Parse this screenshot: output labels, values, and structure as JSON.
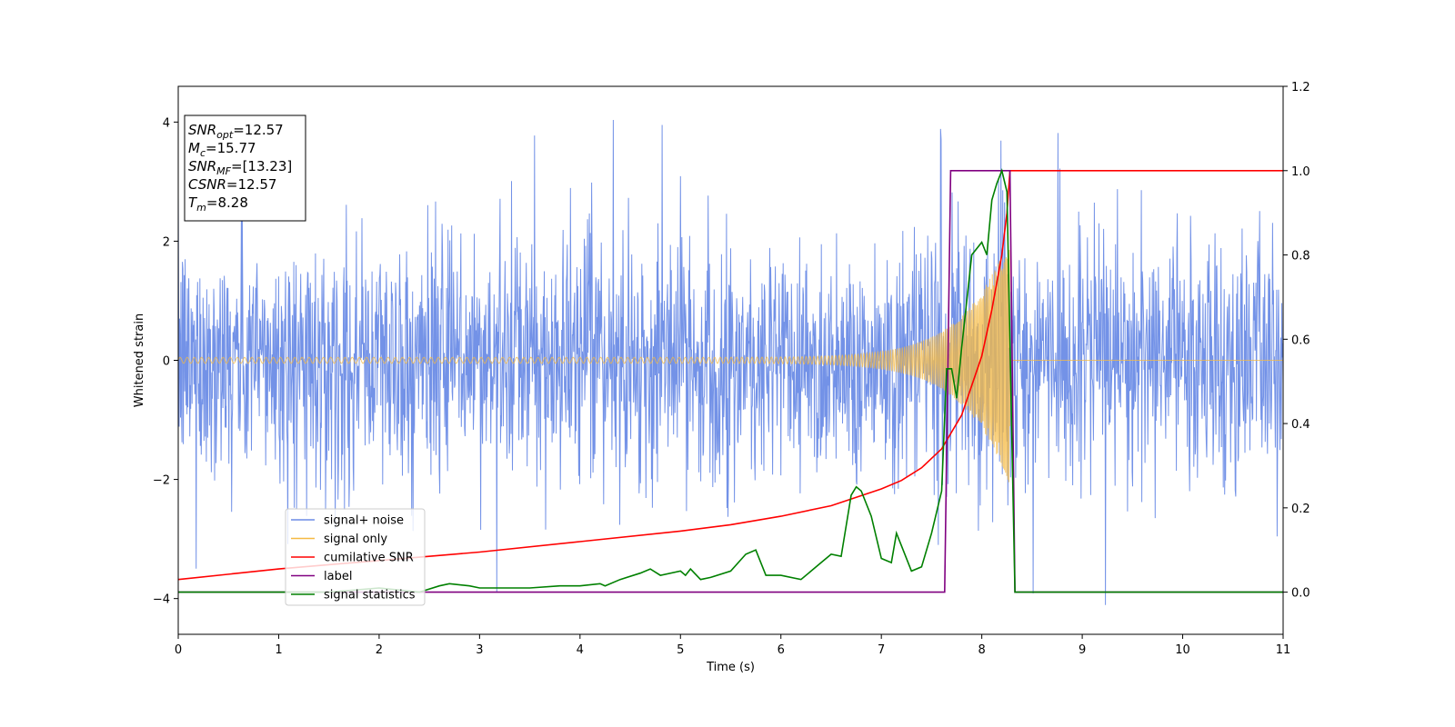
{
  "chart_data": {
    "type": "line",
    "xlabel": "Time (s)",
    "ylabel": "Whitened strain",
    "xlim": [
      0,
      11
    ],
    "ylim_left": [
      -4.6,
      4.6
    ],
    "ylim_right": [
      -0.1,
      1.2
    ],
    "x_ticks": [
      0,
      1,
      2,
      3,
      4,
      5,
      6,
      7,
      8,
      9,
      10,
      11
    ],
    "y_ticks_left": [
      4,
      2,
      0,
      -2,
      -4
    ],
    "y_ticks_right": [
      1.2,
      1.0,
      0.8,
      0.6,
      0.4,
      0.2,
      0.0
    ],
    "x_tick_labels": [
      "0",
      "1",
      "2",
      "3",
      "4",
      "5",
      "6",
      "7",
      "8",
      "9",
      "10",
      "11"
    ],
    "y_tick_labels_left": [
      "4",
      "2",
      "0",
      "−2",
      "−4"
    ],
    "y_tick_labels_right": [
      "1.2",
      "1.0",
      "0.8",
      "0.6",
      "0.4",
      "0.2",
      "0.0"
    ],
    "colors": {
      "signal_noise": "#6b8ce6",
      "signal_only": "#f5b942",
      "cumulative_snr": "#ff0000",
      "label": "#800080",
      "signal_statistics": "#008000"
    },
    "series": [
      {
        "name": "signal+ noise",
        "axis": "left",
        "kind": "noise-band",
        "envelope_sigma": 1.0,
        "approx_peak": 4.2,
        "approx_min": -4.2
      },
      {
        "name": "signal only",
        "axis": "left",
        "kind": "chirp",
        "amplitude_start": 0.05,
        "amplitude_end": 2.1,
        "merger_time": 8.28
      },
      {
        "name": "cumilative SNR",
        "axis": "right",
        "x": [
          0,
          1,
          2,
          3,
          4,
          5,
          5.5,
          6,
          6.5,
          7,
          7.2,
          7.4,
          7.6,
          7.8,
          8.0,
          8.1,
          8.2,
          8.25,
          8.28,
          11
        ],
        "y": [
          0.03,
          0.055,
          0.075,
          0.095,
          0.12,
          0.145,
          0.16,
          0.18,
          0.205,
          0.245,
          0.265,
          0.295,
          0.34,
          0.42,
          0.56,
          0.67,
          0.8,
          0.9,
          1.0,
          1.0
        ]
      },
      {
        "name": "label",
        "axis": "right",
        "x": [
          0,
          7.63,
          7.69,
          8.28,
          8.33,
          11
        ],
        "y": [
          0,
          0,
          1,
          1,
          0,
          0
        ]
      },
      {
        "name": "signal statistics",
        "axis": "right",
        "x": [
          0,
          0.5,
          1.0,
          1.5,
          2.0,
          2.4,
          2.6,
          2.7,
          2.9,
          3.0,
          3.2,
          3.5,
          3.8,
          4.0,
          4.2,
          4.25,
          4.4,
          4.6,
          4.7,
          4.8,
          5.0,
          5.05,
          5.1,
          5.2,
          5.3,
          5.5,
          5.65,
          5.75,
          5.85,
          6.0,
          6.2,
          6.3,
          6.4,
          6.5,
          6.6,
          6.7,
          6.75,
          6.8,
          6.9,
          7.0,
          7.1,
          7.15,
          7.2,
          7.3,
          7.4,
          7.5,
          7.6,
          7.65,
          7.7,
          7.75,
          7.8,
          7.9,
          8.0,
          8.05,
          8.1,
          8.15,
          8.2,
          8.25,
          8.33,
          8.4,
          11
        ],
        "y": [
          0.0,
          0.0,
          0.0,
          0.0,
          0.01,
          0.0,
          0.015,
          0.02,
          0.015,
          0.01,
          0.01,
          0.01,
          0.015,
          0.015,
          0.02,
          0.015,
          0.03,
          0.045,
          0.055,
          0.04,
          0.05,
          0.04,
          0.055,
          0.03,
          0.035,
          0.05,
          0.09,
          0.1,
          0.04,
          0.04,
          0.03,
          0.05,
          0.07,
          0.09,
          0.085,
          0.23,
          0.25,
          0.24,
          0.18,
          0.08,
          0.07,
          0.14,
          0.11,
          0.05,
          0.06,
          0.14,
          0.24,
          0.53,
          0.53,
          0.46,
          0.58,
          0.8,
          0.83,
          0.8,
          0.93,
          0.97,
          1.0,
          0.95,
          0.0,
          0.0,
          0.0
        ]
      }
    ],
    "legend_position": "lower-left",
    "annotation_box": {
      "lines": [
        {
          "prefix": "SNR",
          "sub": "opt",
          "value": "=12.57"
        },
        {
          "prefix": "M",
          "sub": "c",
          "value": "=15.77"
        },
        {
          "prefix": "SNR",
          "sub": "MF",
          "value": "=[13.23]"
        },
        {
          "prefix": "CSNR",
          "sub": "",
          "value": "=12.57"
        },
        {
          "prefix": "T",
          "sub": "m",
          "value": "=8.28"
        }
      ]
    },
    "grid": false
  }
}
